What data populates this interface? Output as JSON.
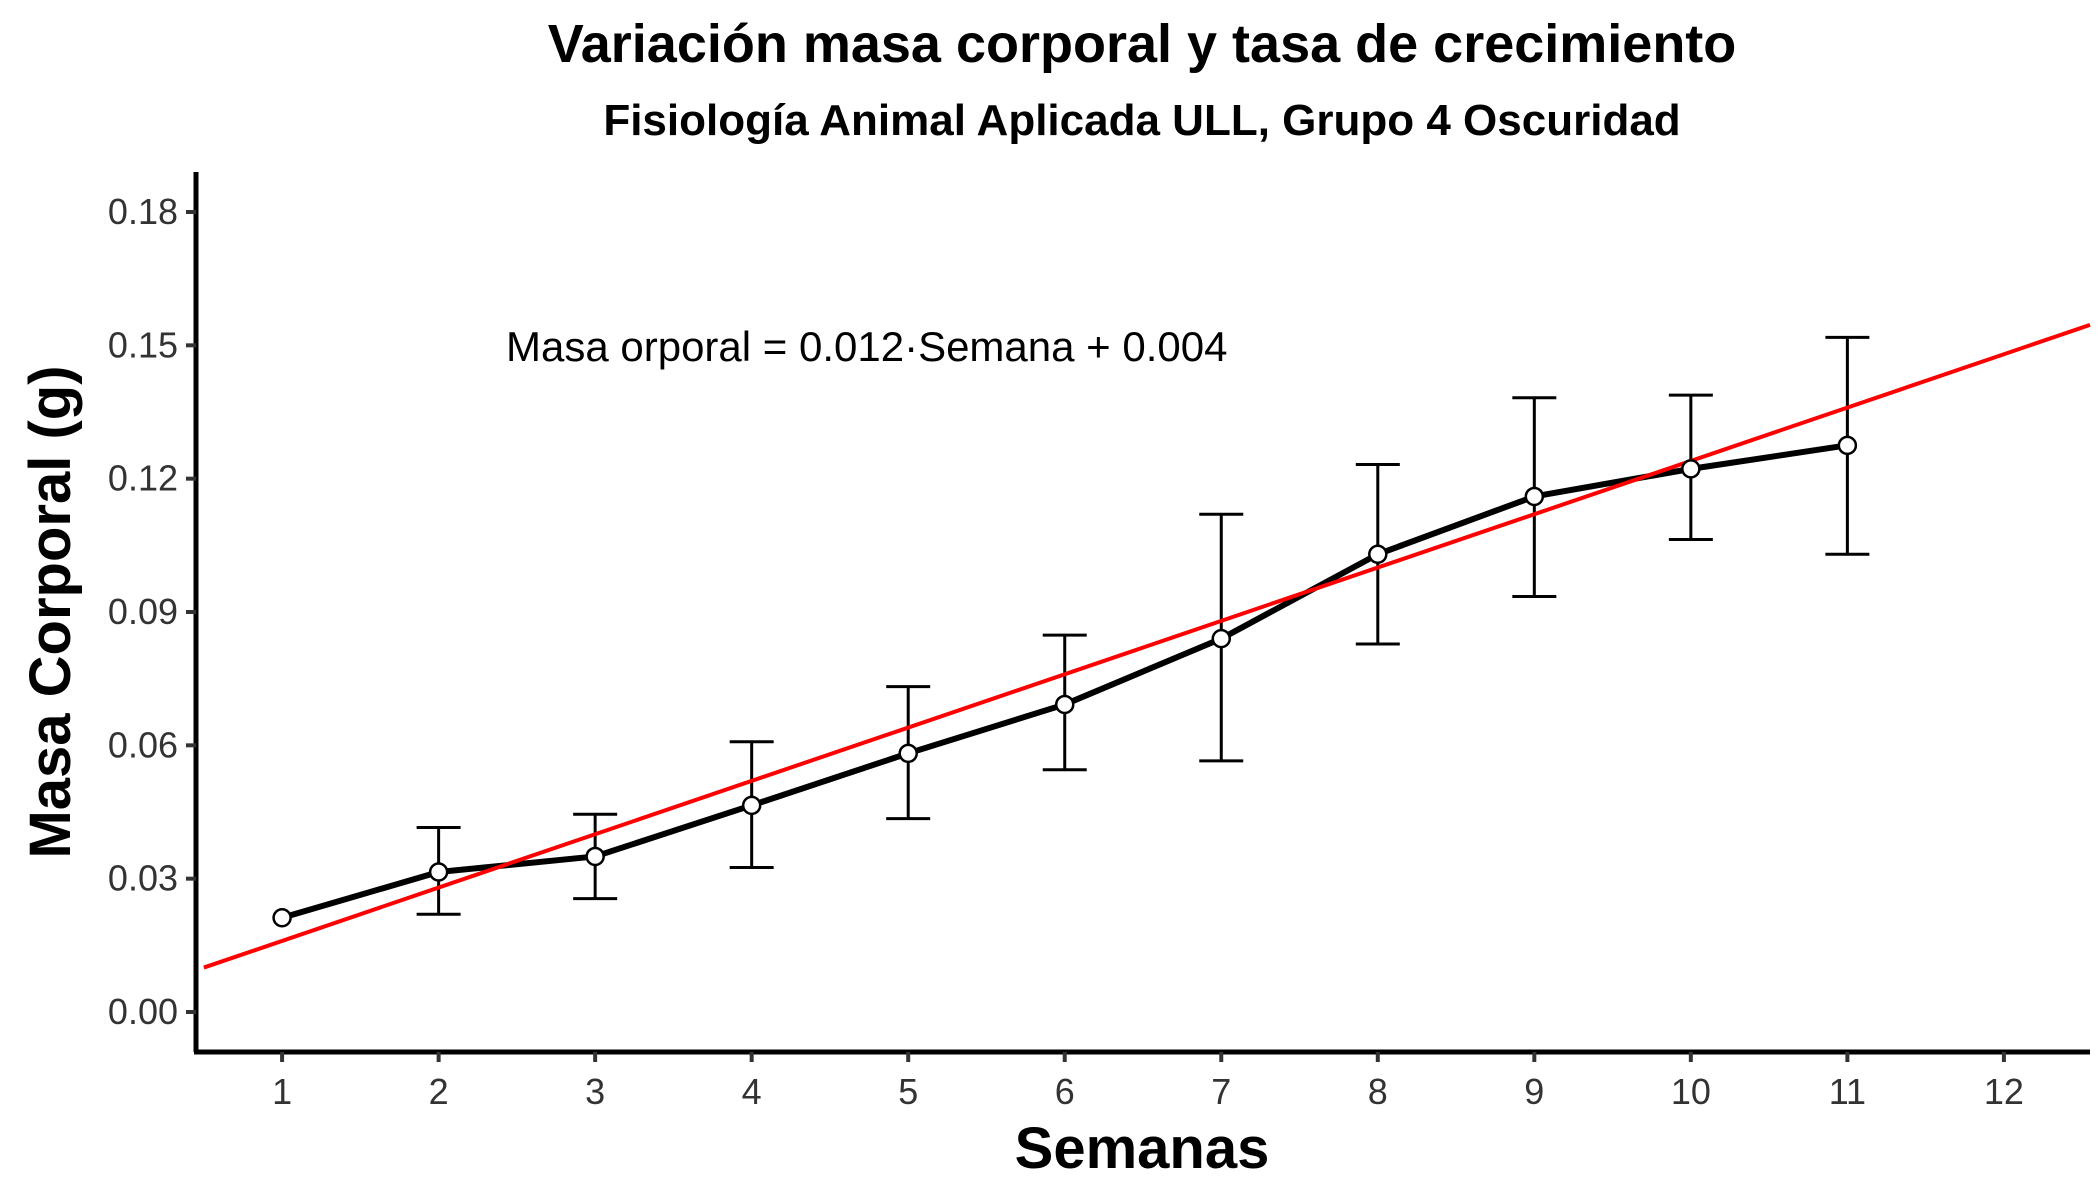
{
  "chart_data": {
    "type": "line",
    "title": "Variación masa corporal y tasa de crecimiento",
    "subtitle": "Fisiología Animal Aplicada ULL, Grupo 4 Oscuridad",
    "xlabel": "Semanas",
    "ylabel": "Masa Corporal (g)",
    "annotation": "Masa orporal = 0.012·Semana + 0.004",
    "xlim": [
      0.45,
      12.55
    ],
    "ylim": [
      -0.009,
      0.189
    ],
    "x_ticks": [
      "1",
      "2",
      "3",
      "4",
      "5",
      "6",
      "7",
      "8",
      "9",
      "10",
      "11",
      "12"
    ],
    "y_ticks": [
      "0.00",
      "0.03",
      "0.06",
      "0.09",
      "0.12",
      "0.15",
      "0.18"
    ],
    "grid": false,
    "series": [
      {
        "x": [
          1,
          2,
          3,
          4,
          5,
          6,
          7,
          8,
          9,
          10,
          11
        ],
        "y": [
          0.0212,
          0.0315,
          0.035,
          0.0465,
          0.0582,
          0.0692,
          0.084,
          0.103,
          0.116,
          0.1222,
          0.1275
        ],
        "err_low": [
          null,
          0.022,
          0.0255,
          0.0325,
          0.0435,
          0.0545,
          0.0565,
          0.0828,
          0.0935,
          0.1063,
          0.103
        ],
        "err_high": [
          null,
          0.0415,
          0.0445,
          0.0608,
          0.0732,
          0.0848,
          0.112,
          0.1232,
          0.1382,
          0.1388,
          0.1518
        ],
        "color": "#000000"
      }
    ],
    "trendline": {
      "slope": 0.012,
      "intercept": 0.004,
      "color": "#ff0000"
    }
  }
}
